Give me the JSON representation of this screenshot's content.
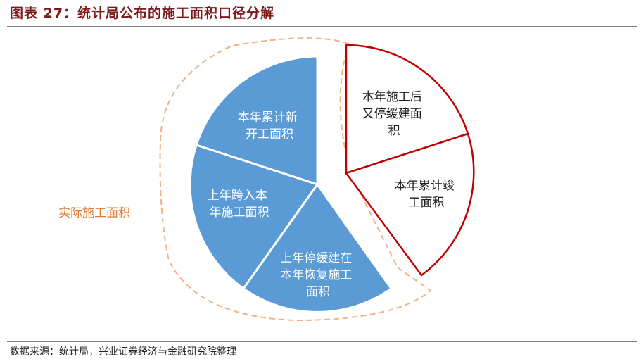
{
  "title": "图表 27：统计局公布的施工面积口径分解",
  "source": "数据来源：统计局，兴业证券经济与金融研究院整理",
  "colors": {
    "blue_fill": "#5b9bd5",
    "red_outline": "#c00000",
    "orange_dash": "#f4b183",
    "orange_text": "#e57b2e",
    "title_color": "#7a1a1a"
  },
  "group_label": "实际施工面积",
  "slices": [
    {
      "id": "new-starts",
      "group": "actual",
      "lines": [
        "本年累计新",
        "开工面积"
      ]
    },
    {
      "id": "carry-over",
      "group": "actual",
      "lines": [
        "上年跨入本",
        "年施工面积"
      ]
    },
    {
      "id": "resumed",
      "group": "actual",
      "lines": [
        "上年停缓建在",
        "本年恢复施工",
        "面积"
      ]
    },
    {
      "id": "suspended",
      "group": "excluded",
      "lines": [
        "本年施工后",
        "又停缓建面",
        "积"
      ]
    },
    {
      "id": "completed",
      "group": "excluded",
      "lines": [
        "本年累计竣",
        "工面积"
      ]
    }
  ]
}
